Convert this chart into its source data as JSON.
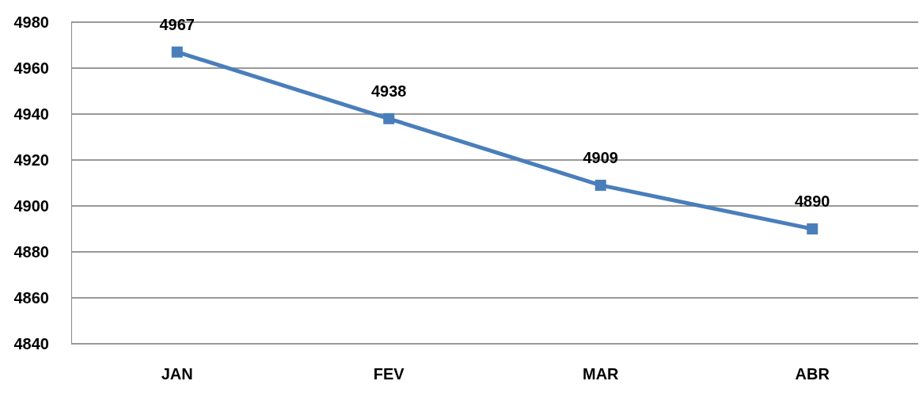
{
  "chart_data": {
    "type": "line",
    "categories": [
      "JAN",
      "FEV",
      "MAR",
      "ABR"
    ],
    "series": [
      {
        "color": "#4a7ebb",
        "values": [
          4967,
          4938,
          4909,
          4890
        ]
      }
    ],
    "ylim": [
      4840,
      4980
    ],
    "yticks": [
      4840,
      4860,
      4880,
      4900,
      4920,
      4940,
      4960,
      4980
    ],
    "grid": "y",
    "marker": "square",
    "data_labels": true
  }
}
